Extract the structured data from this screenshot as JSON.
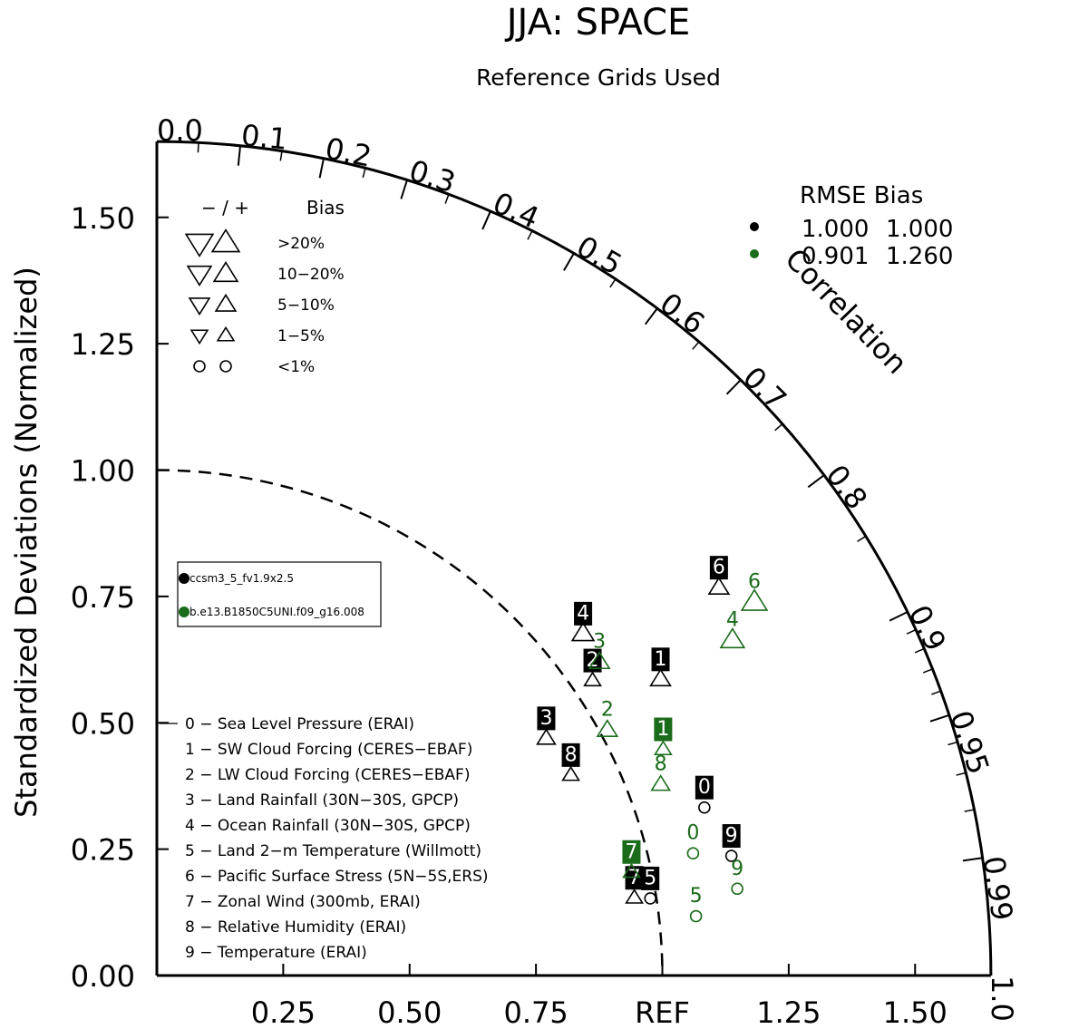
{
  "chart_data": {
    "type": "taylor-diagram",
    "title": "JJA: SPACE",
    "subtitle": "Reference Grids Used",
    "ylabel": "Standardized Deviations (Normalized)",
    "radial_max": 1.65,
    "sd_ticks": [
      {
        "value": 0.25,
        "label": "0.25"
      },
      {
        "value": 0.5,
        "label": "0.50"
      },
      {
        "value": 0.75,
        "label": "0.75"
      },
      {
        "value": 1.0,
        "label": "REF"
      },
      {
        "value": 1.25,
        "label": "1.25"
      },
      {
        "value": 1.5,
        "label": "1.50"
      }
    ],
    "y_ticks": [
      {
        "value": 0.0,
        "label": "0.00"
      },
      {
        "value": 0.25,
        "label": "0.25"
      },
      {
        "value": 0.5,
        "label": "0.50"
      },
      {
        "value": 0.75,
        "label": "0.75"
      },
      {
        "value": 1.0,
        "label": "1.00"
      },
      {
        "value": 1.25,
        "label": "1.25"
      },
      {
        "value": 1.5,
        "label": "1.50"
      }
    ],
    "correlation_label": "Correlation",
    "correlation_ticks": [
      {
        "value": 0.0,
        "label": "0.0"
      },
      {
        "value": 0.1,
        "label": "0.1"
      },
      {
        "value": 0.2,
        "label": "0.2"
      },
      {
        "value": 0.3,
        "label": "0.3"
      },
      {
        "value": 0.4,
        "label": "0.4"
      },
      {
        "value": 0.5,
        "label": "0.5"
      },
      {
        "value": 0.6,
        "label": "0.6"
      },
      {
        "value": 0.7,
        "label": "0.7"
      },
      {
        "value": 0.8,
        "label": "0.8"
      },
      {
        "value": 0.9,
        "label": "0.9"
      },
      {
        "value": 0.95,
        "label": "0.95"
      },
      {
        "value": 0.99,
        "label": "0.99"
      },
      {
        "value": 1.0,
        "label": "1.0"
      }
    ],
    "minor_correlation_ticks": [
      0.05,
      0.15,
      0.25,
      0.35,
      0.45,
      0.55,
      0.65,
      0.75,
      0.85,
      0.91,
      0.92,
      0.93,
      0.94,
      0.96,
      0.97,
      0.98
    ],
    "reference_sd": 1.0,
    "bias_legend": {
      "header_symbols": "−  /  +",
      "header_label": "Bias",
      "rows": [
        {
          "label": ">20%",
          "size": 1.0,
          "shape": "triangle"
        },
        {
          "label": "10−20%",
          "size": 0.8,
          "shape": "triangle"
        },
        {
          "label": "5−10%",
          "size": 0.6,
          "shape": "triangle"
        },
        {
          "label": "1−5%",
          "size": 0.4,
          "shape": "triangle"
        },
        {
          "label": "<1%",
          "size": 0.5,
          "shape": "circle"
        }
      ]
    },
    "rmse_table": {
      "header": "RMSE  Bias",
      "rows": [
        {
          "color": "#000000",
          "rmse": "1.000",
          "bias": "1.000"
        },
        {
          "color": "#1a6b1a",
          "rmse": "0.901",
          "bias": "1.260"
        }
      ]
    },
    "cases": [
      {
        "name": "ccsm3_5_fv1.9x2.5",
        "color": "#000000"
      },
      {
        "name": "b.e13.B1850C5UNI.f09_g16.008",
        "color": "#1a6b1a"
      }
    ],
    "variables": [
      "0 − Sea Level Pressure (ERAI)",
      "1 − SW Cloud Forcing (CERES−EBAF)",
      "2 − LW Cloud Forcing (CERES−EBAF)",
      "3 − Land Rainfall (30N−30S, GPCP)",
      "4 − Ocean Rainfall (30N−30S, GPCP)",
      "5 − Land 2−m Temperature (Willmott)",
      "6 − Pacific Surface Stress (5N−5S,ERS)",
      "7 − Zonal Wind (300mb, ERAI)",
      "8 − Relative Humidity (ERAI)",
      "9 − Temperature (ERAI)"
    ],
    "series": [
      {
        "name": "ccsm3_5_fv1.9x2.5",
        "color": "#000000",
        "points": [
          {
            "id": "0",
            "sd": 1.133,
            "corr": 0.956,
            "marker": "circle",
            "size": 0.5
          },
          {
            "id": "1",
            "sd": 1.156,
            "corr": 0.862,
            "marker": "triangle-up",
            "size": 0.6
          },
          {
            "id": "2",
            "sd": 1.041,
            "corr": 0.828,
            "marker": "triangle-up",
            "size": 0.4
          },
          {
            "id": "3",
            "sd": 0.902,
            "corr": 0.854,
            "marker": "triangle-up",
            "size": 0.5
          },
          {
            "id": "4",
            "sd": 1.081,
            "corr": 0.78,
            "marker": "triangle-up",
            "size": 0.7
          },
          {
            "id": "5",
            "sd": 0.988,
            "corr": 0.988,
            "marker": "circle",
            "size": 0.5
          },
          {
            "id": "6",
            "sd": 1.351,
            "corr": 0.823,
            "marker": "triangle-up",
            "size": 0.6
          },
          {
            "id": "7",
            "sd": 0.957,
            "corr": 0.987,
            "marker": "triangle-up",
            "size": 0.4
          },
          {
            "id": "8",
            "sd": 0.91,
            "corr": 0.9,
            "marker": "triangle-up",
            "size": 0.4
          },
          {
            "id": "9",
            "sd": 1.161,
            "corr": 0.979,
            "marker": "circle",
            "size": 0.5
          }
        ]
      },
      {
        "name": "b.e13.B1850C5UNI.f09_g16.008",
        "color": "#1a6b1a",
        "points": [
          {
            "id": "0",
            "sd": 1.088,
            "corr": 0.975,
            "marker": "circle",
            "size": 0.5
          },
          {
            "id": "1",
            "sd": 1.097,
            "corr": 0.913,
            "marker": "triangle-up",
            "size": 0.4
          },
          {
            "id": "2",
            "sd": 1.015,
            "corr": 0.878,
            "marker": "triangle-up",
            "size": 0.6
          },
          {
            "id": "3",
            "sd": 1.073,
            "corr": 0.816,
            "marker": "triangle-up",
            "size": 0.6
          },
          {
            "id": "4",
            "sd": 1.318,
            "corr": 0.864,
            "marker": "triangle-up",
            "size": 0.8
          },
          {
            "id": "5",
            "sd": 1.073,
            "corr": 0.994,
            "marker": "circle",
            "size": 0.5
          },
          {
            "id": "6",
            "sd": 1.394,
            "corr": 0.848,
            "marker": "triangle-up",
            "size": 0.9
          },
          {
            "id": "7",
            "sd": 0.961,
            "corr": 0.977,
            "marker": "triangle-up",
            "size": 0.4
          },
          {
            "id": "8",
            "sd": 1.066,
            "corr": 0.935,
            "marker": "triangle-up",
            "size": 0.5
          },
          {
            "id": "9",
            "sd": 1.161,
            "corr": 0.989,
            "marker": "circle",
            "size": 0.5
          }
        ]
      }
    ]
  }
}
